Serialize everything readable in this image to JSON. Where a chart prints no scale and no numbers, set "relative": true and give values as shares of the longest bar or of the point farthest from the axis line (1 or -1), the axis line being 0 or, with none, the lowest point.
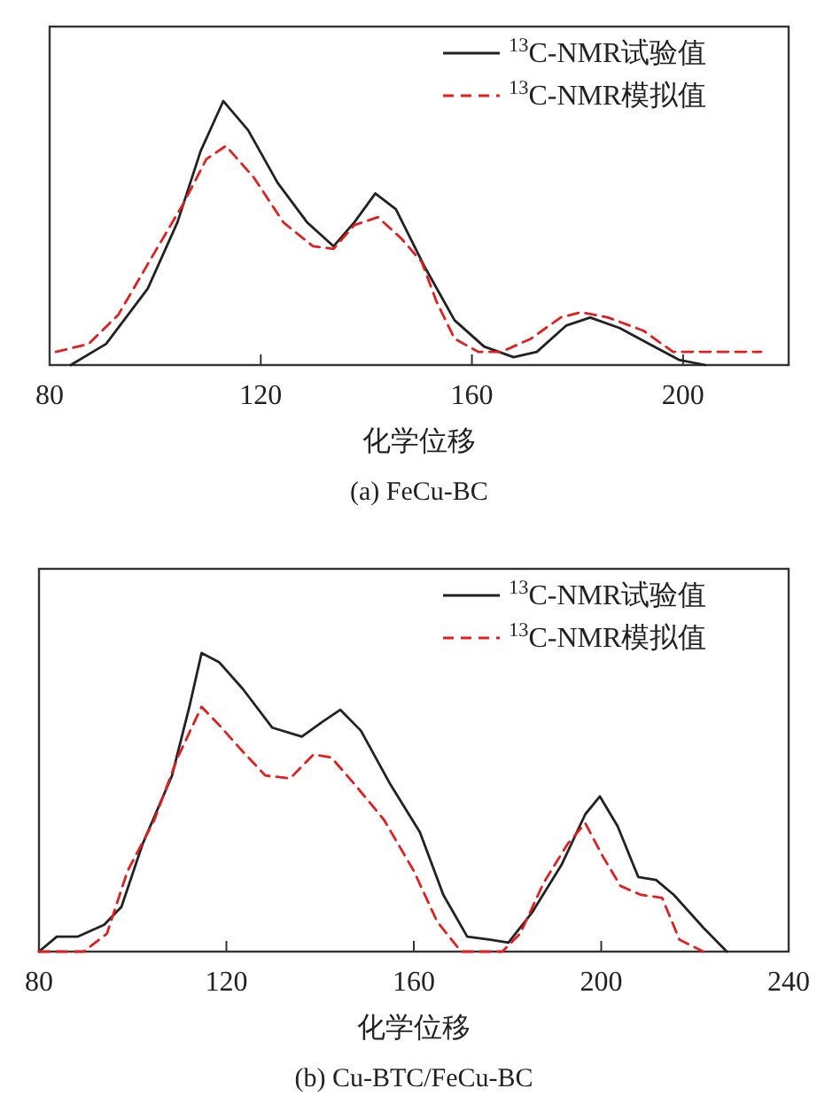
{
  "chart_data": [
    {
      "type": "line",
      "title": "(a) FeCu-BC",
      "xlabel": "化学位移",
      "xlim": [
        80,
        220
      ],
      "xticks": [
        80,
        120,
        160,
        200
      ],
      "relative": true,
      "legend": "top right",
      "series": [
        {
          "name": "$^{13}$C-NMR试验值",
          "color": "#222222",
          "line_style": "solid",
          "x": [
            84.0,
            90.7,
            98.6,
            104.2,
            108.6,
            112.9,
            117.6,
            123.2,
            128.8,
            133.8,
            137.7,
            141.7,
            145.6,
            151.1,
            156.7,
            162.3,
            167.9,
            172.3,
            177.9,
            182.4,
            188.0,
            193.6,
            199.2,
            204.2
          ],
          "values": [
            0,
            0.08,
            0.29,
            0.54,
            0.81,
            1.0,
            0.89,
            0.69,
            0.54,
            0.45,
            0.54,
            0.65,
            0.59,
            0.37,
            0.17,
            0.07,
            0.03,
            0.05,
            0.15,
            0.18,
            0.14,
            0.08,
            0.02,
            0
          ]
        },
        {
          "name": "$^{13}$C-NMR模拟值",
          "color": "#e02020",
          "line_style": "dashed",
          "x": [
            81.2,
            87.4,
            93.0,
            99.7,
            105.3,
            109.7,
            113.4,
            118.7,
            124.3,
            129.9,
            133.8,
            137.7,
            142.2,
            146.6,
            150.5,
            153.3,
            156.7,
            161.2,
            165.6,
            171.2,
            176.8,
            180.7,
            185.8,
            192.5,
            198.1,
            204.8,
            214.8
          ],
          "values": [
            0.05,
            0.08,
            0.19,
            0.42,
            0.61,
            0.78,
            0.83,
            0.71,
            0.54,
            0.45,
            0.44,
            0.53,
            0.56,
            0.48,
            0.39,
            0.24,
            0.1,
            0.05,
            0.05,
            0.1,
            0.18,
            0.2,
            0.18,
            0.13,
            0.05,
            0.05,
            0.05
          ]
        }
      ]
    },
    {
      "type": "line",
      "title": "(b) Cu-BTC/FeCu-BC",
      "xlabel": "化学位移",
      "xlim": [
        80,
        240
      ],
      "xticks": [
        80,
        120,
        160,
        200,
        240
      ],
      "relative": true,
      "legend": "top right",
      "series": [
        {
          "name": "$^{13}$C-NMR试验值",
          "color": "#222222",
          "line_style": "solid",
          "x": [
            80,
            83.8,
            88.2,
            93.9,
            97.6,
            102.1,
            108.4,
            112.1,
            114.7,
            118.4,
            123.5,
            129.8,
            136.1,
            140.5,
            144.3,
            148.7,
            155.0,
            161.3,
            166.3,
            171.4,
            176.4,
            180.2,
            185.2,
            191.5,
            196.6,
            199.7,
            203.5,
            207.9,
            211.7,
            215.5,
            221.8,
            226.8
          ],
          "values": [
            0,
            0.05,
            0.05,
            0.09,
            0.15,
            0.36,
            0.59,
            0.82,
            1.0,
            0.97,
            0.88,
            0.75,
            0.72,
            0.77,
            0.81,
            0.74,
            0.56,
            0.4,
            0.19,
            0.05,
            0.04,
            0.03,
            0.13,
            0.29,
            0.46,
            0.52,
            0.42,
            0.25,
            0.24,
            0.19,
            0.08,
            0
          ]
        },
        {
          "name": "$^{13}$C-NMR模拟值",
          "color": "#e02020",
          "line_style": "dashed",
          "x": [
            80,
            89.5,
            94.5,
            98.9,
            104.6,
            109.6,
            114.7,
            118.4,
            123.5,
            128.3,
            133.6,
            138.6,
            142.4,
            147.4,
            153.7,
            160.0,
            165.0,
            170.1,
            178.9,
            182.7,
            187.7,
            192.8,
            196.6,
            200.3,
            204.1,
            208.5,
            213.0,
            216.7,
            221.8
          ],
          "values": [
            0,
            0,
            0.06,
            0.27,
            0.44,
            0.65,
            0.82,
            0.76,
            0.67,
            0.59,
            0.58,
            0.66,
            0.65,
            0.56,
            0.44,
            0.27,
            0.1,
            0,
            0,
            0.06,
            0.23,
            0.36,
            0.43,
            0.32,
            0.22,
            0.19,
            0.18,
            0.04,
            0
          ]
        }
      ]
    }
  ]
}
